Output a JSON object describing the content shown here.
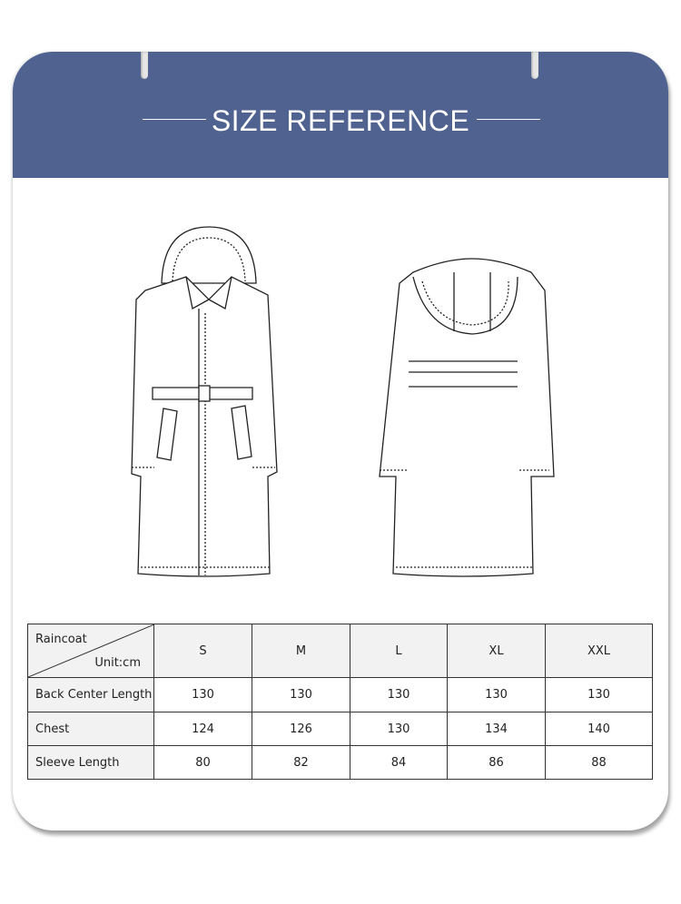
{
  "header": {
    "title": "SIZE REFERENCE",
    "color": "#50628f"
  },
  "table": {
    "corner_top": "Raincoat",
    "corner_bottom": "Unit:cm",
    "sizes": [
      "S",
      "M",
      "L",
      "XL",
      "XXL"
    ],
    "rows": [
      {
        "label": "Back Center Length",
        "values": [
          "130",
          "130",
          "130",
          "130",
          "130"
        ]
      },
      {
        "label": "Chest",
        "values": [
          "124",
          "126",
          "130",
          "134",
          "140"
        ]
      },
      {
        "label": "Sleeve Length",
        "values": [
          "80",
          "82",
          "84",
          "86",
          "88"
        ]
      }
    ]
  }
}
